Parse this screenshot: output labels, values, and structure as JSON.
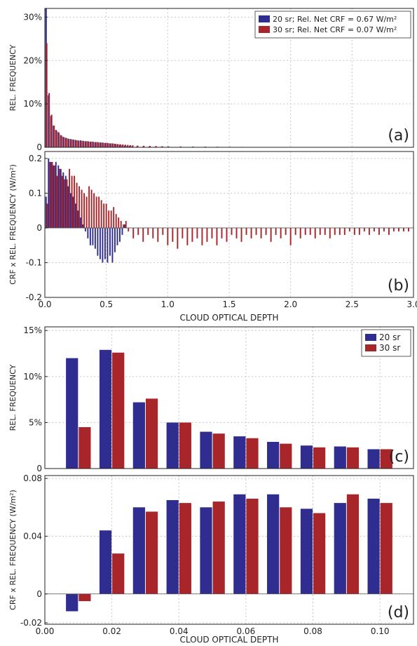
{
  "figure": {
    "top_xlabel": "CLOUD OPTICAL DEPTH",
    "bottom_xlabel": "CLOUD OPTICAL DEPTH",
    "colors": {
      "sr20": "#2f2d8f",
      "sr30": "#a8252a",
      "grid": "#c8c8c8"
    }
  },
  "chart_data": [
    {
      "type": "bar",
      "panel_label": "(a)",
      "ylabel": "REL. FREQUENCY",
      "xlim": [
        0,
        3.0
      ],
      "ylim": [
        0,
        32
      ],
      "yticks": [
        0,
        10,
        20,
        30
      ],
      "ytick_labels": [
        "0",
        "10%",
        "20%",
        "30%"
      ],
      "show_xtick_labels": false,
      "bar_width": 0.012,
      "legend": {
        "position": "top-right",
        "entries": [
          "20 sr; Rel. Net CRF = 0.67 W/m²",
          "30 sr; Rel. Net CRF = 0.07 W/m²"
        ]
      },
      "series": [
        {
          "name": "20 sr",
          "color": "#2f2d8f",
          "x": [
            0.01,
            0.03,
            0.05,
            0.07,
            0.09,
            0.11,
            0.13,
            0.15,
            0.17,
            0.19,
            0.21,
            0.23,
            0.25,
            0.27,
            0.29,
            0.31,
            0.33,
            0.35,
            0.37,
            0.39,
            0.41,
            0.43,
            0.45,
            0.47,
            0.49,
            0.51,
            0.53,
            0.55,
            0.57,
            0.59,
            0.61,
            0.63,
            0.65,
            0.67,
            0.69,
            0.71,
            0.75,
            0.8,
            0.85,
            0.9,
            0.95,
            1.0,
            1.1,
            1.2,
            1.3,
            1.4,
            1.5,
            1.6,
            1.7,
            1.8,
            1.9,
            2.0,
            2.2,
            2.4,
            2.6,
            2.8
          ],
          "values": [
            32,
            12,
            7.2,
            5,
            4,
            3.5,
            2.8,
            2.4,
            2.2,
            2.0,
            1.9,
            1.8,
            1.7,
            1.6,
            1.6,
            1.5,
            1.4,
            1.4,
            1.3,
            1.3,
            1.2,
            1.2,
            1.1,
            1.1,
            1.0,
            1.0,
            0.9,
            0.9,
            0.8,
            0.7,
            0.6,
            0.5,
            0.4,
            0.35,
            0.3,
            0.25,
            0.2,
            0.18,
            0.16,
            0.14,
            0.12,
            0.1,
            0.09,
            0.08,
            0.07,
            0.06,
            0.05,
            0.05,
            0.04,
            0.04,
            0.03,
            0.03,
            0.03,
            0.02,
            0.02,
            0.02
          ]
        },
        {
          "name": "30 sr",
          "color": "#a8252a",
          "x": [
            0.015,
            0.035,
            0.055,
            0.075,
            0.095,
            0.115,
            0.135,
            0.155,
            0.175,
            0.195,
            0.215,
            0.235,
            0.255,
            0.275,
            0.295,
            0.315,
            0.335,
            0.355,
            0.375,
            0.395,
            0.415,
            0.435,
            0.455,
            0.475,
            0.495,
            0.515,
            0.535,
            0.555,
            0.575,
            0.595,
            0.615,
            0.635,
            0.655,
            0.675,
            0.695,
            0.715,
            0.755,
            0.805,
            0.855,
            0.905,
            0.955,
            1.005,
            1.105,
            1.205,
            1.305,
            1.405,
            1.505,
            1.605,
            1.705,
            1.805,
            1.905,
            2.005,
            2.205,
            2.405,
            2.605,
            2.805
          ],
          "values": [
            24,
            12.5,
            7.5,
            5,
            3.8,
            3.3,
            2.7,
            2.3,
            2.1,
            1.9,
            1.8,
            1.7,
            1.6,
            1.5,
            1.5,
            1.4,
            1.4,
            1.3,
            1.3,
            1.2,
            1.2,
            1.1,
            1.1,
            1.0,
            1.0,
            0.95,
            0.9,
            0.85,
            0.8,
            0.75,
            0.7,
            0.65,
            0.6,
            0.55,
            0.5,
            0.45,
            0.4,
            0.36,
            0.32,
            0.28,
            0.25,
            0.22,
            0.2,
            0.18,
            0.16,
            0.14,
            0.12,
            0.1,
            0.09,
            0.08,
            0.07,
            0.06,
            0.05,
            0.04,
            0.04,
            0.03
          ]
        }
      ]
    },
    {
      "type": "bar",
      "panel_label": "(b)",
      "ylabel": "CRF x REL. FREQUENCY (W/m²)",
      "xlabel_key": "top_xlabel",
      "xlim": [
        0,
        3.0
      ],
      "ylim": [
        -0.2,
        0.22
      ],
      "yticks": [
        -0.2,
        -0.1,
        0,
        0.1,
        0.2
      ],
      "ytick_labels": [
        "-0.2",
        "-0.1",
        "0",
        "0.1",
        "0.2"
      ],
      "xticks": [
        0,
        0.5,
        1.0,
        1.5,
        2.0,
        2.5,
        3.0
      ],
      "xtick_labels": [
        "0.0",
        "0.5",
        "1.0",
        "1.5",
        "2.0",
        "2.5",
        "3.0"
      ],
      "show_xtick_labels": true,
      "bar_width": 0.011,
      "series": [
        {
          "name": "20 sr",
          "color": "#2f2d8f",
          "x": [
            0.01,
            0.03,
            0.05,
            0.07,
            0.09,
            0.11,
            0.13,
            0.15,
            0.17,
            0.19,
            0.21,
            0.23,
            0.25,
            0.27,
            0.29,
            0.31,
            0.33,
            0.35,
            0.37,
            0.39,
            0.41,
            0.43,
            0.45,
            0.47,
            0.49,
            0.51,
            0.53,
            0.55,
            0.57,
            0.59,
            0.61,
            0.63,
            0.65
          ],
          "values": [
            0.09,
            0.2,
            0.19,
            0.18,
            0.19,
            0.18,
            0.17,
            0.16,
            0.15,
            0.12,
            0.1,
            0.09,
            0.07,
            0.05,
            0.03,
            0.01,
            -0.01,
            -0.03,
            -0.05,
            -0.05,
            -0.06,
            -0.08,
            -0.09,
            -0.1,
            -0.09,
            -0.1,
            -0.08,
            -0.1,
            -0.07,
            -0.05,
            -0.04,
            -0.02,
            0.01
          ]
        },
        {
          "name": "30 sr",
          "color": "#a8252a",
          "x": [
            0.02,
            0.04,
            0.06,
            0.08,
            0.1,
            0.12,
            0.14,
            0.16,
            0.18,
            0.2,
            0.22,
            0.24,
            0.26,
            0.28,
            0.3,
            0.32,
            0.34,
            0.36,
            0.38,
            0.4,
            0.42,
            0.44,
            0.46,
            0.48,
            0.5,
            0.52,
            0.54,
            0.56,
            0.58,
            0.6,
            0.62,
            0.64,
            0.66,
            0.68,
            0.72,
            0.76,
            0.8,
            0.84,
            0.88,
            0.92,
            0.96,
            1.0,
            1.04,
            1.08,
            1.12,
            1.16,
            1.2,
            1.24,
            1.28,
            1.32,
            1.36,
            1.4,
            1.44,
            1.48,
            1.52,
            1.56,
            1.6,
            1.64,
            1.68,
            1.72,
            1.76,
            1.8,
            1.84,
            1.88,
            1.92,
            1.96,
            2.0,
            2.04,
            2.08,
            2.12,
            2.16,
            2.2,
            2.24,
            2.28,
            2.32,
            2.36,
            2.4,
            2.44,
            2.48,
            2.52,
            2.56,
            2.6,
            2.64,
            2.68,
            2.72,
            2.76,
            2.8,
            2.84,
            2.88,
            2.92,
            2.96
          ],
          "values": [
            0.07,
            0.19,
            0.19,
            0.18,
            0.15,
            0.17,
            0.15,
            0.14,
            0.14,
            0.17,
            0.15,
            0.15,
            0.13,
            0.12,
            0.11,
            0.1,
            0.09,
            0.12,
            0.11,
            0.1,
            0.09,
            0.09,
            0.08,
            0.07,
            0.07,
            0.05,
            0.05,
            0.06,
            0.04,
            0.03,
            0.02,
            0.01,
            0.02,
            -0.01,
            -0.03,
            -0.02,
            -0.04,
            -0.02,
            -0.03,
            -0.04,
            -0.02,
            -0.05,
            -0.04,
            -0.06,
            -0.03,
            -0.05,
            -0.04,
            -0.03,
            -0.05,
            -0.04,
            -0.03,
            -0.05,
            -0.03,
            -0.04,
            -0.02,
            -0.03,
            -0.04,
            -0.02,
            -0.03,
            -0.02,
            -0.03,
            -0.02,
            -0.04,
            -0.02,
            -0.03,
            -0.02,
            -0.05,
            -0.02,
            -0.03,
            -0.02,
            -0.02,
            -0.03,
            -0.02,
            -0.02,
            -0.03,
            -0.02,
            -0.02,
            -0.02,
            -0.01,
            -0.02,
            -0.02,
            -0.01,
            -0.02,
            -0.01,
            -0.02,
            -0.01,
            -0.02,
            -0.01,
            -0.01,
            -0.01,
            -0.01
          ]
        }
      ]
    },
    {
      "type": "bar",
      "panel_label": "(c)",
      "ylabel": "REL. FREQUENCY",
      "xlim": [
        0,
        0.11
      ],
      "ylim": [
        0,
        15.4
      ],
      "yticks": [
        0,
        5,
        10,
        15
      ],
      "ytick_labels": [
        "0",
        "5%",
        "10%",
        "15%"
      ],
      "show_xtick_labels": false,
      "bar_width": 0.0036,
      "legend": {
        "position": "top-right",
        "entries": [
          "20 sr",
          "30 sr"
        ]
      },
      "series": [
        {
          "name": "20 sr",
          "color": "#2f2d8f",
          "x": [
            0.0081,
            0.0181,
            0.0281,
            0.0381,
            0.0481,
            0.0581,
            0.0681,
            0.0781,
            0.0881,
            0.0981
          ],
          "values": [
            12.0,
            12.9,
            7.2,
            5.0,
            4.0,
            3.5,
            2.9,
            2.5,
            2.4,
            2.1
          ]
        },
        {
          "name": "30 sr",
          "color": "#a8252a",
          "x": [
            0.0119,
            0.0219,
            0.0319,
            0.0419,
            0.0519,
            0.0619,
            0.0719,
            0.0819,
            0.0919,
            0.1019
          ],
          "values": [
            4.5,
            12.6,
            7.6,
            5.0,
            3.8,
            3.3,
            2.7,
            2.3,
            2.3,
            2.1
          ]
        }
      ]
    },
    {
      "type": "bar",
      "panel_label": "(d)",
      "ylabel": "CRF x REL. FREQUENCY (W/m²)",
      "xlabel_key": "bottom_xlabel",
      "xlim": [
        0,
        0.11
      ],
      "ylim": [
        -0.021,
        0.082
      ],
      "yticks": [
        -0.02,
        0,
        0.04,
        0.08
      ],
      "ytick_labels": [
        "-0.02",
        "0",
        "0.04",
        "0.08"
      ],
      "xticks": [
        0,
        0.02,
        0.04,
        0.06,
        0.08,
        0.1
      ],
      "xtick_labels": [
        "0.00",
        "0.02",
        "0.04",
        "0.06",
        "0.08",
        "0.10"
      ],
      "show_xtick_labels": true,
      "bar_width": 0.0036,
      "series": [
        {
          "name": "20 sr",
          "color": "#2f2d8f",
          "x": [
            0.0081,
            0.0181,
            0.0281,
            0.0381,
            0.0481,
            0.0581,
            0.0681,
            0.0781,
            0.0881,
            0.0981
          ],
          "values": [
            -0.012,
            0.044,
            0.06,
            0.065,
            0.06,
            0.069,
            0.069,
            0.059,
            0.063,
            0.066
          ]
        },
        {
          "name": "30 sr",
          "color": "#a8252a",
          "x": [
            0.0119,
            0.0219,
            0.0319,
            0.0419,
            0.0519,
            0.0619,
            0.0719,
            0.0819,
            0.0919,
            0.1019
          ],
          "values": [
            -0.005,
            0.028,
            0.057,
            0.063,
            0.064,
            0.066,
            0.06,
            0.056,
            0.069,
            0.063
          ]
        }
      ]
    }
  ]
}
